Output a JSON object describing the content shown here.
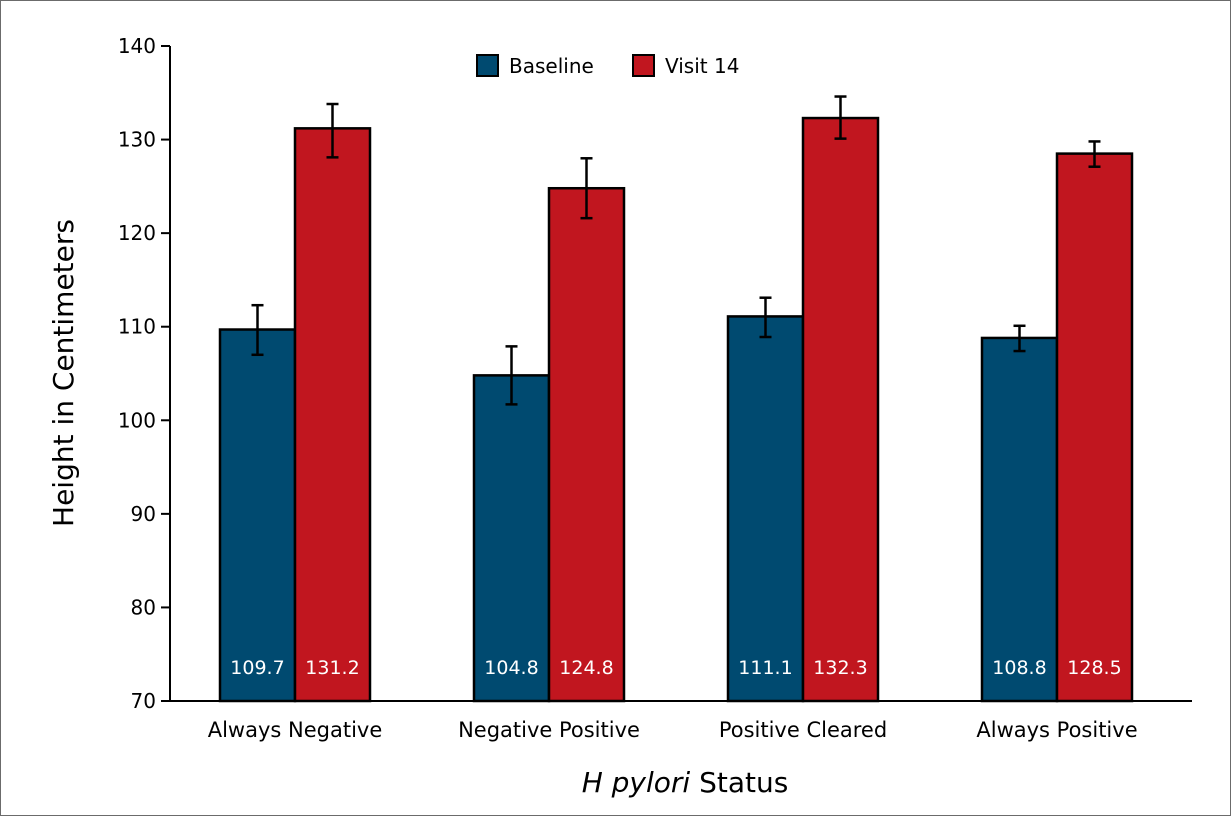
{
  "chart_data": {
    "type": "bar",
    "title": "",
    "xlabel_italic": "H pylori",
    "xlabel_rest": " Status",
    "ylabel": "Height in Centimeters",
    "ylim": [
      70,
      140
    ],
    "yticks": [
      70,
      80,
      90,
      100,
      110,
      120,
      130,
      140
    ],
    "grid": false,
    "legend_position": "top-center",
    "categories": [
      "Always Negative",
      "Negative Positive",
      "Positive Cleared",
      "Always Positive"
    ],
    "series": [
      {
        "name": "Baseline",
        "color": "#004a70",
        "values": [
          109.7,
          104.8,
          111.1,
          108.8
        ],
        "value_labels": [
          "109.7",
          "104.8",
          "111.1",
          "108.8"
        ],
        "error_low": [
          107.0,
          101.7,
          108.9,
          107.4
        ],
        "error_high": [
          112.3,
          107.9,
          113.1,
          110.1
        ]
      },
      {
        "name": "Visit 14",
        "color": "#c1161f",
        "values": [
          131.2,
          124.8,
          132.3,
          128.5
        ],
        "value_labels": [
          "131.2",
          "124.8",
          "132.3",
          "128.5"
        ],
        "error_low": [
          128.1,
          121.6,
          130.1,
          127.1
        ],
        "error_high": [
          133.8,
          128.0,
          134.6,
          129.8
        ]
      }
    ]
  }
}
